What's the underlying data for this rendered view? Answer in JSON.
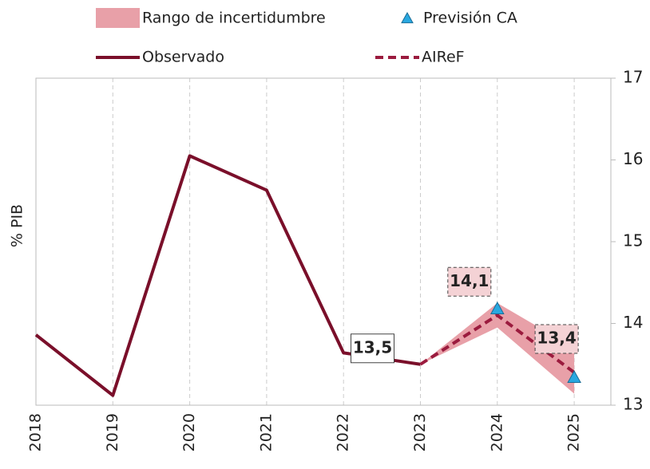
{
  "chart_data": {
    "type": "line",
    "y_label": "% PIB",
    "categories": [
      "2018",
      "2019",
      "2020",
      "2021",
      "2022",
      "2023",
      "2024",
      "2025"
    ],
    "ylim": [
      13,
      17
    ],
    "yticks": [
      13,
      14,
      15,
      16,
      17
    ],
    "y_axis_side": "right",
    "xgrid": true,
    "band": {
      "name": "Rango de incertidumbre",
      "color": "#e8a0a8",
      "upper": [
        null,
        null,
        null,
        null,
        null,
        13.5,
        14.25,
        13.7
      ],
      "lower": [
        null,
        null,
        null,
        null,
        null,
        13.5,
        13.95,
        13.14
      ]
    },
    "series": [
      {
        "name": "Observado",
        "color": "#7a0f2a",
        "style": "solid",
        "values": [
          13.86,
          13.12,
          16.05,
          15.63,
          13.64,
          13.5,
          null,
          null
        ],
        "value_labels": [
          null,
          null,
          null,
          null,
          null,
          "13,5",
          null,
          null
        ]
      },
      {
        "name": "AIReF",
        "color": "#9b1b3e",
        "style": "dashed",
        "values": [
          null,
          null,
          null,
          null,
          null,
          13.5,
          14.1,
          13.4
        ],
        "value_labels": [
          null,
          null,
          null,
          null,
          null,
          null,
          "14,1",
          "13,4"
        ]
      },
      {
        "name": "Previsión CA",
        "color": "#29a8e0",
        "style": "marker",
        "values": [
          null,
          null,
          null,
          null,
          null,
          null,
          14.18,
          13.34
        ]
      }
    ]
  }
}
